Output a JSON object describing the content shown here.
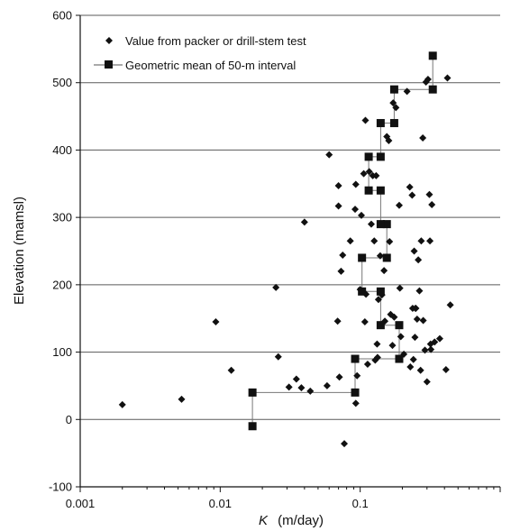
{
  "chart_data": {
    "type": "scatter",
    "x_scale": "log",
    "grid": {
      "horizontal": true,
      "vertical": false
    },
    "legend_position": "top-left",
    "xlabel": {
      "italic": "K",
      "rest": "(m/day)"
    },
    "ylabel": "Elevation (mamsl)",
    "xlim": [
      0.001,
      1
    ],
    "ylim": [
      -100,
      600
    ],
    "x_ticks": [
      {
        "value": 0.001,
        "label": "0.001"
      },
      {
        "value": 0.01,
        "label": "0.01"
      },
      {
        "value": 0.1,
        "label": "0.1"
      }
    ],
    "y_ticks": [
      {
        "value": 600,
        "label": "600"
      },
      {
        "value": 500,
        "label": "500"
      },
      {
        "value": 400,
        "label": "400"
      },
      {
        "value": 300,
        "label": "300"
      },
      {
        "value": 200,
        "label": "200"
      },
      {
        "value": 100,
        "label": "100"
      },
      {
        "value": 0,
        "label": "0"
      },
      {
        "value": -100,
        "label": "-100"
      }
    ],
    "series": [
      {
        "name": "Value from packer or drill-stem test",
        "marker": "diamond",
        "color": "#111111",
        "points": [
          [
            0.002,
            22
          ],
          [
            0.0053,
            30
          ],
          [
            0.0093,
            145
          ],
          [
            0.012,
            73
          ],
          [
            0.025,
            196
          ],
          [
            0.026,
            93
          ],
          [
            0.031,
            48
          ],
          [
            0.035,
            60
          ],
          [
            0.038,
            47
          ],
          [
            0.04,
            293
          ],
          [
            0.044,
            42
          ],
          [
            0.058,
            50
          ],
          [
            0.06,
            393
          ],
          [
            0.069,
            146
          ],
          [
            0.07,
            347
          ],
          [
            0.07,
            317
          ],
          [
            0.071,
            63
          ],
          [
            0.073,
            220
          ],
          [
            0.075,
            244
          ],
          [
            0.077,
            -36
          ],
          [
            0.085,
            265
          ],
          [
            0.092,
            312
          ],
          [
            0.093,
            24
          ],
          [
            0.093,
            349
          ],
          [
            0.095,
            65
          ],
          [
            0.1,
            193
          ],
          [
            0.102,
            303
          ],
          [
            0.106,
            365
          ],
          [
            0.108,
            145
          ],
          [
            0.109,
            444
          ],
          [
            0.11,
            186
          ],
          [
            0.113,
            82
          ],
          [
            0.116,
            368
          ],
          [
            0.12,
            290
          ],
          [
            0.123,
            362
          ],
          [
            0.126,
            265
          ],
          [
            0.128,
            88
          ],
          [
            0.13,
            362
          ],
          [
            0.132,
            112
          ],
          [
            0.133,
            92
          ],
          [
            0.135,
            178
          ],
          [
            0.139,
            243
          ],
          [
            0.143,
            185
          ],
          [
            0.148,
            221
          ],
          [
            0.15,
            146
          ],
          [
            0.155,
            420
          ],
          [
            0.16,
            414
          ],
          [
            0.162,
            264
          ],
          [
            0.165,
            156
          ],
          [
            0.17,
            110
          ],
          [
            0.172,
            470
          ],
          [
            0.175,
            152
          ],
          [
            0.18,
            463
          ],
          [
            0.19,
            318
          ],
          [
            0.192,
            195
          ],
          [
            0.195,
            123
          ],
          [
            0.205,
            97
          ],
          [
            0.216,
            487
          ],
          [
            0.226,
            345
          ],
          [
            0.228,
            78
          ],
          [
            0.235,
            333
          ],
          [
            0.237,
            165
          ],
          [
            0.24,
            89
          ],
          [
            0.243,
            250
          ],
          [
            0.246,
            122
          ],
          [
            0.248,
            165
          ],
          [
            0.25,
            165
          ],
          [
            0.255,
            149
          ],
          [
            0.26,
            237
          ],
          [
            0.265,
            191
          ],
          [
            0.27,
            73
          ],
          [
            0.273,
            265
          ],
          [
            0.28,
            418
          ],
          [
            0.282,
            147
          ],
          [
            0.29,
            103
          ],
          [
            0.295,
            501
          ],
          [
            0.3,
            56
          ],
          [
            0.305,
            505
          ],
          [
            0.312,
            334
          ],
          [
            0.315,
            265
          ],
          [
            0.318,
            112
          ],
          [
            0.32,
            104
          ],
          [
            0.325,
            319
          ],
          [
            0.34,
            115
          ],
          [
            0.37,
            120
          ],
          [
            0.41,
            74
          ],
          [
            0.42,
            507
          ],
          [
            0.44,
            170
          ]
        ]
      },
      {
        "name": "Geometric mean of 50-m interval",
        "marker": "square",
        "color": "#111111",
        "line": true,
        "points": [
          [
            0.017,
            -10
          ],
          [
            0.017,
            40
          ],
          [
            0.092,
            40
          ],
          [
            0.092,
            90
          ],
          [
            0.19,
            90
          ],
          [
            0.19,
            140
          ],
          [
            0.14,
            140
          ],
          [
            0.14,
            190
          ],
          [
            0.103,
            190
          ],
          [
            0.103,
            240
          ],
          [
            0.155,
            240
          ],
          [
            0.155,
            290
          ],
          [
            0.14,
            290
          ],
          [
            0.14,
            340
          ],
          [
            0.115,
            340
          ],
          [
            0.115,
            390
          ],
          [
            0.14,
            390
          ],
          [
            0.14,
            440
          ],
          [
            0.175,
            440
          ],
          [
            0.175,
            490
          ],
          [
            0.33,
            490
          ],
          [
            0.33,
            540
          ]
        ]
      }
    ]
  }
}
